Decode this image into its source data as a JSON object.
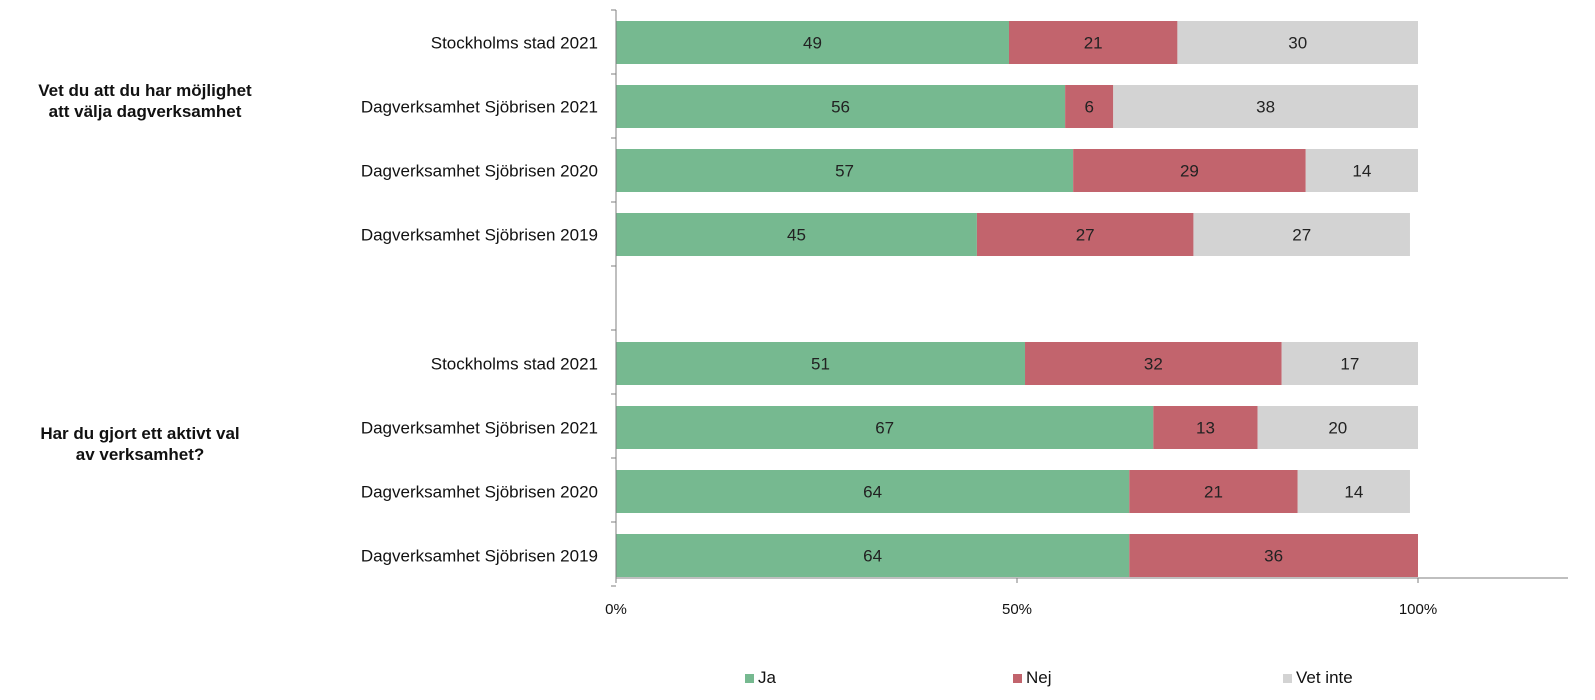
{
  "chart_data": {
    "type": "bar",
    "orientation": "horizontal",
    "stacked": true,
    "groups": [
      {
        "title": "Vet du att du har möjlighet att välja dagverksamhet",
        "title_lines": [
          "Vet du att du har möjlighet",
          "att välja dagverksamhet"
        ],
        "categories": [
          "Stockholms stad 2021",
          "Dagverksamhet Sjöbrisen 2021",
          "Dagverksamhet Sjöbrisen 2020",
          "Dagverksamhet Sjöbrisen 2019"
        ],
        "series": [
          {
            "name": "Ja",
            "values": [
              49,
              56,
              57,
              45
            ]
          },
          {
            "name": "Nej",
            "values": [
              21,
              6,
              29,
              27
            ]
          },
          {
            "name": "Vet inte",
            "values": [
              30,
              38,
              14,
              27
            ]
          }
        ]
      },
      {
        "title": "Har du gjort ett aktivt val av verksamhet?",
        "title_lines": [
          "Har du gjort ett aktivt val",
          "av verksamhet?"
        ],
        "categories": [
          "Stockholms stad 2021",
          "Dagverksamhet Sjöbrisen 2021",
          "Dagverksamhet Sjöbrisen 2020",
          "Dagverksamhet Sjöbrisen 2019"
        ],
        "series": [
          {
            "name": "Ja",
            "values": [
              51,
              67,
              64,
              64
            ]
          },
          {
            "name": "Nej",
            "values": [
              32,
              13,
              21,
              36
            ]
          },
          {
            "name": "Vet inte",
            "values": [
              17,
              20,
              14,
              0
            ]
          }
        ]
      }
    ],
    "x_ticks": [
      "0%",
      "50%",
      "100%"
    ],
    "xlim": [
      0,
      100
    ],
    "grid": false,
    "legend_position": "bottom",
    "colors": {
      "Ja": "#76b990",
      "Nej": "#c2646d",
      "Vet inte": "#d3d3d3"
    }
  }
}
